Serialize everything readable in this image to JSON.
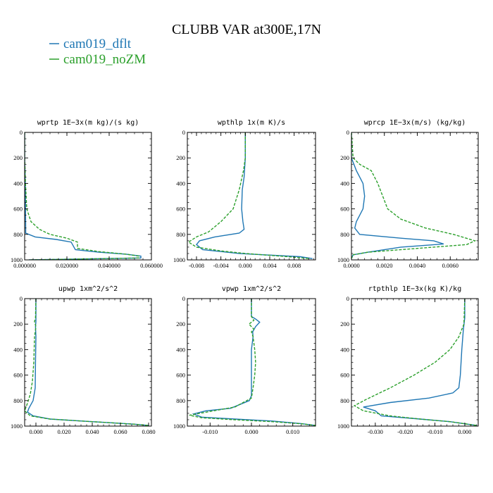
{
  "title": "CLUBB VAR at300E,17N",
  "legend": [
    {
      "name": "cam019_dflt",
      "color": "#1f77b4"
    },
    {
      "name": "cam019_noZM",
      "color": "#2ca02c"
    }
  ],
  "chart_data": [
    {
      "type": "line",
      "title": "wprtp   1E−3x(m kg)/(s kg)",
      "xlim": [
        0,
        0.06
      ],
      "ylim": [
        1000,
        0
      ],
      "xticks": [
        0,
        0.02,
        0.04,
        0.06
      ],
      "xtick_labels": [
        "0.000000",
        "0.020000",
        "0.040000",
        "0.060000"
      ],
      "yticks": [
        0,
        200,
        400,
        600,
        800,
        1000
      ],
      "ytick_labels": [
        "0",
        "200",
        "400",
        "600",
        "800",
        "1000"
      ],
      "series": [
        {
          "name": "cam019_dflt",
          "points": [
            [
              0,
              0
            ],
            [
              0,
              200
            ],
            [
              0.0003,
              400
            ],
            [
              0.0004,
              600
            ],
            [
              0.0005,
              750
            ],
            [
              0.0005,
              790
            ],
            [
              0.005,
              820
            ],
            [
              0.015,
              840
            ],
            [
              0.022,
              860
            ],
            [
              0.024,
              920
            ],
            [
              0.035,
              940
            ],
            [
              0.048,
              955
            ],
            [
              0.055,
              970
            ],
            [
              0.055,
              985
            ],
            [
              0.002,
              1000
            ]
          ]
        },
        {
          "name": "cam019_noZM",
          "points": [
            [
              0,
              0
            ],
            [
              0,
              200
            ],
            [
              0.0004,
              400
            ],
            [
              0.001,
              600
            ],
            [
              0.003,
              700
            ],
            [
              0.007,
              760
            ],
            [
              0.012,
              800
            ],
            [
              0.02,
              830
            ],
            [
              0.025,
              860
            ],
            [
              0.025,
              910
            ],
            [
              0.035,
              935
            ],
            [
              0.048,
              955
            ],
            [
              0.054,
              970
            ],
            [
              0.054,
              985
            ],
            [
              0.002,
              1000
            ]
          ]
        }
      ]
    },
    {
      "type": "line",
      "title": "wpthlp   1x(m K)/s",
      "xlim": [
        -0.0095,
        0.0115
      ],
      "ylim": [
        1000,
        0
      ],
      "xticks": [
        -0.008,
        -0.004,
        0,
        0.004,
        0.008
      ],
      "xtick_labels": [
        "-0.008",
        "-0.004",
        "0.000",
        "0.004",
        "0.008"
      ],
      "yticks": [
        0,
        200,
        400,
        600,
        800,
        1000
      ],
      "ytick_labels": [
        "0",
        "200",
        "400",
        "600",
        "800",
        "1000"
      ],
      "series": [
        {
          "name": "cam019_dflt",
          "points": [
            [
              0,
              0
            ],
            [
              0,
              200
            ],
            [
              -0.0002,
              350
            ],
            [
              -0.0005,
              450
            ],
            [
              -0.0006,
              600
            ],
            [
              -0.0004,
              700
            ],
            [
              -0.0002,
              760
            ],
            [
              -0.001,
              790
            ],
            [
              -0.005,
              820
            ],
            [
              -0.0075,
              850
            ],
            [
              -0.008,
              880
            ],
            [
              -0.007,
              920
            ],
            [
              -0.001,
              950
            ],
            [
              0.009,
              975
            ],
            [
              0.011,
              990
            ]
          ]
        },
        {
          "name": "cam019_noZM",
          "points": [
            [
              0,
              0
            ],
            [
              0,
              200
            ],
            [
              -0.0003,
              300
            ],
            [
              -0.001,
              450
            ],
            [
              -0.002,
              600
            ],
            [
              -0.004,
              700
            ],
            [
              -0.006,
              780
            ],
            [
              -0.008,
              820
            ],
            [
              -0.0093,
              860
            ],
            [
              -0.008,
              900
            ],
            [
              -0.004,
              930
            ],
            [
              0,
              950
            ],
            [
              0.007,
              975
            ],
            [
              0.0105,
              990
            ]
          ]
        }
      ]
    },
    {
      "type": "line",
      "title": "wprcp   1E−3x(m/s) (kg/kg)",
      "xlim": [
        0,
        0.0077
      ],
      "ylim": [
        1000,
        0
      ],
      "xticks": [
        0,
        0.002,
        0.004,
        0.006
      ],
      "xtick_labels": [
        "0.0000",
        "0.0020",
        "0.0040",
        "0.0060"
      ],
      "yticks": [
        0,
        200,
        400,
        600,
        800,
        1000
      ],
      "ytick_labels": [
        "0",
        "200",
        "400",
        "600",
        "800",
        "1000"
      ],
      "series": [
        {
          "name": "cam019_dflt",
          "points": [
            [
              0,
              0
            ],
            [
              0,
              200
            ],
            [
              0.0003,
              300
            ],
            [
              0.0007,
              400
            ],
            [
              0.0008,
              500
            ],
            [
              0.0007,
              600
            ],
            [
              0.0003,
              700
            ],
            [
              0.0002,
              750
            ],
            [
              0.0005,
              800
            ],
            [
              0.003,
              830
            ],
            [
              0.005,
              850
            ],
            [
              0.0056,
              875
            ],
            [
              0.003,
              900
            ],
            [
              0.001,
              940
            ],
            [
              0.0001,
              960
            ],
            [
              0,
              990
            ]
          ]
        },
        {
          "name": "cam019_noZM",
          "points": [
            [
              0,
              0
            ],
            [
              0.0001,
              200
            ],
            [
              0.0005,
              250
            ],
            [
              0.0012,
              300
            ],
            [
              0.0016,
              400
            ],
            [
              0.0019,
              500
            ],
            [
              0.0022,
              600
            ],
            [
              0.003,
              680
            ],
            [
              0.0045,
              750
            ],
            [
              0.0062,
              800
            ],
            [
              0.0075,
              850
            ],
            [
              0.007,
              880
            ],
            [
              0.004,
              910
            ],
            [
              0.001,
              940
            ],
            [
              0.0001,
              960
            ],
            [
              0,
              990
            ]
          ]
        }
      ]
    },
    {
      "type": "line",
      "title": "upwp   1xm^2/s^2",
      "xlim": [
        -0.008,
        0.082
      ],
      "ylim": [
        1000,
        0
      ],
      "xticks": [
        0,
        0.02,
        0.04,
        0.06,
        0.08
      ],
      "xtick_labels": [
        "0.000",
        "0.020",
        "0.040",
        "0.060",
        "0.080"
      ],
      "yticks": [
        0,
        200,
        400,
        600,
        800,
        1000
      ],
      "ytick_labels": [
        "0",
        "200",
        "400",
        "600",
        "800",
        "1000"
      ],
      "series": [
        {
          "name": "cam019_dflt",
          "points": [
            [
              0,
              0
            ],
            [
              0,
              180
            ],
            [
              -0.0003,
              220
            ],
            [
              0,
              300
            ],
            [
              -0.0003,
              500
            ],
            [
              -0.0005,
              700
            ],
            [
              -0.002,
              800
            ],
            [
              -0.005,
              860
            ],
            [
              -0.006,
              890
            ],
            [
              -0.002,
              920
            ],
            [
              0.01,
              945
            ],
            [
              0.04,
              965
            ],
            [
              0.07,
              985
            ],
            [
              0.08,
              995
            ]
          ]
        },
        {
          "name": "cam019_noZM",
          "points": [
            [
              0,
              0
            ],
            [
              -0.0003,
              150
            ],
            [
              -0.001,
              180
            ],
            [
              0,
              220
            ],
            [
              -0.001,
              300
            ],
            [
              -0.0015,
              500
            ],
            [
              -0.0025,
              650
            ],
            [
              -0.004,
              750
            ],
            [
              -0.006,
              820
            ],
            [
              -0.008,
              880
            ],
            [
              -0.004,
              920
            ],
            [
              0.01,
              945
            ],
            [
              0.04,
              965
            ],
            [
              0.07,
              985
            ],
            [
              0.08,
              995
            ]
          ]
        }
      ]
    },
    {
      "type": "line",
      "title": "vpwp   1xm^2/s^2",
      "xlim": [
        -0.0155,
        0.0155
      ],
      "ylim": [
        1000,
        0
      ],
      "xticks": [
        -0.01,
        0,
        0.01
      ],
      "xtick_labels": [
        "-0.010",
        "0.000",
        "0.010"
      ],
      "yticks": [
        0,
        200,
        400,
        600,
        800,
        1000
      ],
      "ytick_labels": [
        "0",
        "200",
        "400",
        "600",
        "800",
        "1000"
      ],
      "series": [
        {
          "name": "cam019_dflt",
          "points": [
            [
              0,
              0
            ],
            [
              0,
              140
            ],
            [
              0.001,
              160
            ],
            [
              0.002,
              185
            ],
            [
              0.001,
              220
            ],
            [
              0.0003,
              260
            ],
            [
              0.0004,
              300
            ],
            [
              0,
              400
            ],
            [
              0,
              600
            ],
            [
              0,
              760
            ],
            [
              -0.0005,
              800
            ],
            [
              -0.005,
              860
            ],
            [
              -0.011,
              880
            ],
            [
              -0.014,
              905
            ],
            [
              -0.012,
              930
            ],
            [
              -0.004,
              945
            ],
            [
              0.005,
              960
            ],
            [
              0.012,
              980
            ],
            [
              0.0155,
              995
            ]
          ]
        },
        {
          "name": "cam019_noZM",
          "points": [
            [
              0,
              0
            ],
            [
              0,
              140
            ],
            [
              0.0006,
              170
            ],
            [
              -0.0006,
              200
            ],
            [
              0.0006,
              240
            ],
            [
              0,
              260
            ],
            [
              0.0004,
              300
            ],
            [
              0.0008,
              400
            ],
            [
              0.001,
              500
            ],
            [
              0.0008,
              600
            ],
            [
              0.0004,
              700
            ],
            [
              0,
              780
            ],
            [
              -0.004,
              850
            ],
            [
              -0.01,
              885
            ],
            [
              -0.015,
              915
            ],
            [
              -0.012,
              935
            ],
            [
              -0.004,
              950
            ],
            [
              0.005,
              965
            ],
            [
              0.012,
              982
            ],
            [
              0.0155,
              995
            ]
          ]
        }
      ]
    },
    {
      "type": "line",
      "title": "rtpthlp   1E−3x(kg K)/kg",
      "xlim": [
        -0.038,
        0.0045
      ],
      "ylim": [
        1000,
        0
      ],
      "xticks": [
        -0.03,
        -0.02,
        -0.01,
        0
      ],
      "xtick_labels": [
        "-0.030",
        "-0.020",
        "-0.010",
        "0.000"
      ],
      "yticks": [
        0,
        200,
        400,
        600,
        800,
        1000
      ],
      "ytick_labels": [
        "0",
        "200",
        "400",
        "600",
        "800",
        "1000"
      ],
      "series": [
        {
          "name": "cam019_dflt",
          "points": [
            [
              0,
              0
            ],
            [
              0,
              150
            ],
            [
              -0.0005,
              250
            ],
            [
              -0.001,
              400
            ],
            [
              -0.0015,
              600
            ],
            [
              -0.002,
              700
            ],
            [
              -0.004,
              740
            ],
            [
              -0.012,
              780
            ],
            [
              -0.025,
              815
            ],
            [
              -0.034,
              850
            ],
            [
              -0.03,
              880
            ],
            [
              -0.028,
              920
            ],
            [
              -0.015,
              945
            ],
            [
              -0.005,
              965
            ],
            [
              0.001,
              985
            ],
            [
              0.004,
              995
            ]
          ]
        },
        {
          "name": "cam019_noZM",
          "points": [
            [
              0,
              0
            ],
            [
              -0.0003,
              200
            ],
            [
              -0.002,
              300
            ],
            [
              -0.005,
              400
            ],
            [
              -0.01,
              500
            ],
            [
              -0.017,
              600
            ],
            [
              -0.025,
              700
            ],
            [
              -0.033,
              790
            ],
            [
              -0.037,
              840
            ],
            [
              -0.034,
              880
            ],
            [
              -0.025,
              920
            ],
            [
              -0.015,
              945
            ],
            [
              -0.005,
              965
            ],
            [
              0.001,
              985
            ],
            [
              0.004,
              995
            ]
          ]
        }
      ]
    }
  ]
}
